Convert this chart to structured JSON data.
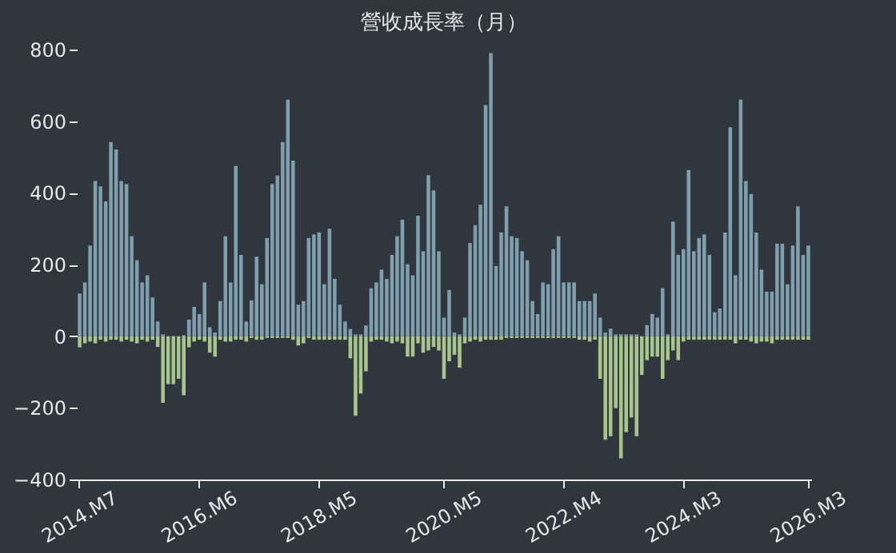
{
  "chart_data": {
    "type": "bar",
    "title": "營收成長率（月）",
    "stacked": true,
    "categories": [
      "2014.M7",
      null,
      null,
      null,
      null,
      null,
      null,
      null,
      null,
      null,
      null,
      null,
      null,
      null,
      null,
      null,
      null,
      null,
      null,
      null,
      null,
      null,
      null,
      "2016.M6",
      null,
      null,
      null,
      null,
      null,
      null,
      null,
      null,
      null,
      null,
      null,
      null,
      null,
      null,
      null,
      null,
      null,
      null,
      null,
      null,
      null,
      null,
      "2018.M5",
      null,
      null,
      null,
      null,
      null,
      null,
      null,
      null,
      null,
      null,
      null,
      null,
      null,
      null,
      null,
      null,
      null,
      null,
      null,
      null,
      null,
      null,
      null,
      "2020.M5",
      null,
      null,
      null,
      null,
      null,
      null,
      null,
      null,
      null,
      null,
      null,
      null,
      null,
      null,
      null,
      null,
      null,
      null,
      null,
      null,
      null,
      null,
      "2022.M4",
      null,
      null,
      null,
      null,
      null,
      null,
      null,
      null,
      null,
      null,
      null,
      null,
      null,
      null,
      null,
      null,
      null,
      null,
      null,
      null,
      null,
      null,
      "2024.M3",
      null,
      null,
      null,
      null,
      null,
      null,
      null,
      null,
      null,
      null,
      null,
      null,
      null,
      null,
      null,
      null,
      null,
      null,
      null,
      null,
      null,
      null,
      null,
      "2026.M3"
    ],
    "series": [
      {
        "color": "#7f9fae",
        "values": [
          119,
          150,
          253,
          433,
          418,
          376,
          542,
          521,
          433,
          425,
          279,
          212,
          150,
          170,
          108,
          41,
          5,
          0,
          0,
          0,
          3,
          46,
          82,
          62,
          150,
          25,
          10,
          98,
          279,
          150,
          475,
          227,
          41,
          100,
          222,
          145,
          274,
          425,
          448,
          542,
          660,
          490,
          88,
          98,
          274,
          284,
          290,
          145,
          300,
          160,
          88,
          41,
          20,
          5,
          5,
          30,
          134,
          150,
          186,
          160,
          227,
          279,
          325,
          201,
          170,
          336,
          237,
          449,
          407,
          237,
          52,
          129,
          10,
          5,
          52,
          260,
          310,
          367,
          645,
          790,
          196,
          290,
          362,
          279,
          274,
          237,
          212,
          98,
          62,
          150,
          145,
          243,
          279,
          150,
          150,
          150,
          98,
          98,
          98,
          119,
          52,
          10,
          21,
          5,
          5,
          5,
          5,
          5,
          0,
          31,
          62,
          52,
          134,
          5,
          320,
          227,
          243,
          464,
          237,
          274,
          284,
          227,
          67,
          77,
          289,
          583,
          170,
          660,
          433,
          397,
          289,
          186,
          124,
          124,
          258,
          258,
          145,
          253,
          362,
          227,
          253
        ]
      },
      {
        "color": "#a9c58e",
        "values": [
          -31,
          -20,
          -15,
          -20,
          -10,
          -15,
          -10,
          -10,
          -15,
          -10,
          -15,
          -20,
          -10,
          -15,
          -10,
          -30,
          -186,
          -134,
          -134,
          -119,
          -165,
          -31,
          -15,
          -10,
          -15,
          -46,
          -57,
          -10,
          -15,
          -15,
          -10,
          -10,
          -15,
          -5,
          -10,
          -10,
          -5,
          -5,
          -5,
          -5,
          -5,
          -10,
          -26,
          -20,
          -5,
          -10,
          -10,
          -10,
          -10,
          -10,
          -10,
          -10,
          -62,
          -222,
          -160,
          -98,
          -15,
          -10,
          -10,
          -15,
          -20,
          -15,
          -20,
          -57,
          -57,
          -20,
          -46,
          -40,
          -30,
          -40,
          -119,
          -70,
          -52,
          -88,
          -20,
          -15,
          -10,
          -15,
          -10,
          -10,
          -10,
          -10,
          -5,
          -5,
          -5,
          -5,
          -5,
          -5,
          -5,
          -5,
          -5,
          -5,
          -5,
          -5,
          -5,
          -5,
          -10,
          -10,
          -15,
          -10,
          -119,
          -289,
          -279,
          -201,
          -341,
          -268,
          -227,
          -279,
          -108,
          -67,
          -57,
          -57,
          -119,
          -67,
          -40,
          -67,
          -15,
          -10,
          -10,
          -10,
          -10,
          -10,
          -10,
          -10,
          -10,
          -10,
          -20,
          -10,
          -10,
          -15,
          -20,
          -15,
          -15,
          -20,
          -10,
          -10,
          -10,
          -10,
          -10,
          -10,
          -10
        ]
      }
    ],
    "ylim": [
      -400,
      800
    ],
    "yticks": [
      -400,
      -200,
      0,
      200,
      400,
      600,
      800
    ],
    "grid": false,
    "legend": false
  }
}
